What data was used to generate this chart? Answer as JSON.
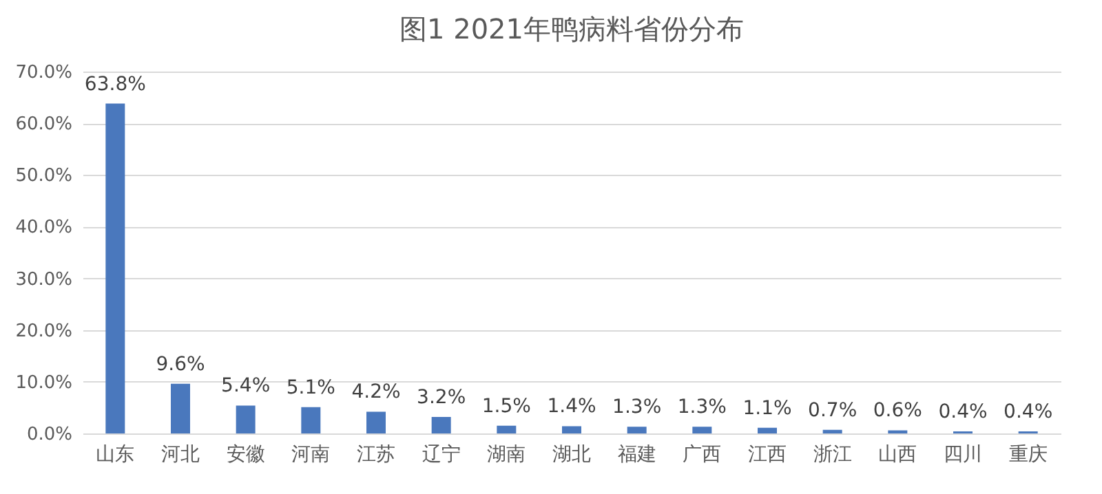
{
  "chart_data": {
    "type": "bar",
    "title": "图1 2021年鸭病料省份分布",
    "categories": [
      "山东",
      "河北",
      "安徽",
      "河南",
      "江苏",
      "辽宁",
      "湖南",
      "湖北",
      "福建",
      "广西",
      "江西",
      "浙江",
      "山西",
      "四川",
      "重庆"
    ],
    "values": [
      63.8,
      9.6,
      5.4,
      5.1,
      4.2,
      3.2,
      1.5,
      1.4,
      1.3,
      1.3,
      1.1,
      0.7,
      0.6,
      0.4,
      0.4
    ],
    "value_labels": [
      "63.8%",
      "9.6%",
      "5.4%",
      "5.1%",
      "4.2%",
      "3.2%",
      "1.5%",
      "1.4%",
      "1.3%",
      "1.3%",
      "1.1%",
      "0.7%",
      "0.6%",
      "0.4%",
      "0.4%"
    ],
    "color": "#4a78bd",
    "ylim": [
      0,
      70
    ],
    "yticks": [
      {
        "value": 0,
        "label": "0.0%"
      },
      {
        "value": 10,
        "label": "10.0%"
      },
      {
        "value": 20,
        "label": "20.0%"
      },
      {
        "value": 30,
        "label": "30.0%"
      },
      {
        "value": 40,
        "label": "40.0%"
      },
      {
        "value": 50,
        "label": "50.0%"
      },
      {
        "value": 60,
        "label": "60.0%"
      },
      {
        "value": 70,
        "label": "70.0%"
      }
    ],
    "grid": "y"
  }
}
